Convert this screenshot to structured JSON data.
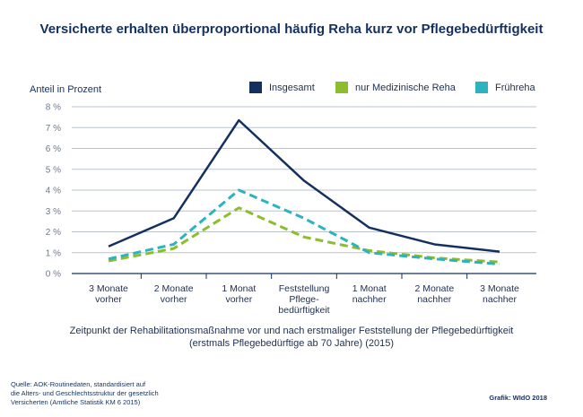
{
  "title": "Versicherte erhalten überproportional häufig Reha kurz vor Pflegebedürftigkeit",
  "chart_data": {
    "type": "line",
    "title": "Versicherte erhalten überproportional häufig Reha kurz vor Pflegebedürftigkeit",
    "ylabel": "Anteil in Prozent",
    "xlabel_line1": "Zeitpunkt der Rehabilitationsmaßnahme vor und nach erstmaliger Feststellung der Pflegebedürftigkeit",
    "xlabel_line2": "(erstmals Pflegebedürftige ab 70 Jahre) (2015)",
    "ylim": [
      0,
      8
    ],
    "yticks": [
      "0 %",
      "1 %",
      "2 %",
      "3 %",
      "4 %",
      "5 %",
      "6 %",
      "7 %",
      "8 %"
    ],
    "grid": true,
    "legend_position": "top-right",
    "categories": [
      [
        "3 Monate",
        "vorher"
      ],
      [
        "2 Monate",
        "vorher"
      ],
      [
        "1 Monat",
        "vorher"
      ],
      [
        "Feststellung",
        "Pflege-",
        "bedürftigkeit"
      ],
      [
        "1 Monat",
        "nachher"
      ],
      [
        "2 Monate",
        "nachher"
      ],
      [
        "3 Monate",
        "nachher"
      ]
    ],
    "series": [
      {
        "name": "Insgesamt",
        "color": "#14305f",
        "dash": "solid",
        "values": [
          1.3,
          2.65,
          7.35,
          4.45,
          2.2,
          1.4,
          1.05
        ]
      },
      {
        "name": "nur Medizinische Reha",
        "color": "#8cbd2c",
        "dash": "dashed",
        "values": [
          0.6,
          1.2,
          3.15,
          1.75,
          1.1,
          0.75,
          0.55
        ]
      },
      {
        "name": "Frühreha",
        "color": "#2bb3c0",
        "dash": "dashed",
        "values": [
          0.7,
          1.4,
          4.0,
          2.65,
          1.0,
          0.7,
          0.45
        ]
      }
    ]
  },
  "source": {
    "line1": "Quelle: AOK-Routinedaten, standardisiert auf",
    "line2": "die Alters- und Geschlechtsstruktur der gesetzlich",
    "line3": "Versicherten (Amtliche Statistik KM 6 2015)"
  },
  "credit": "Grafik: WIdO 2018"
}
